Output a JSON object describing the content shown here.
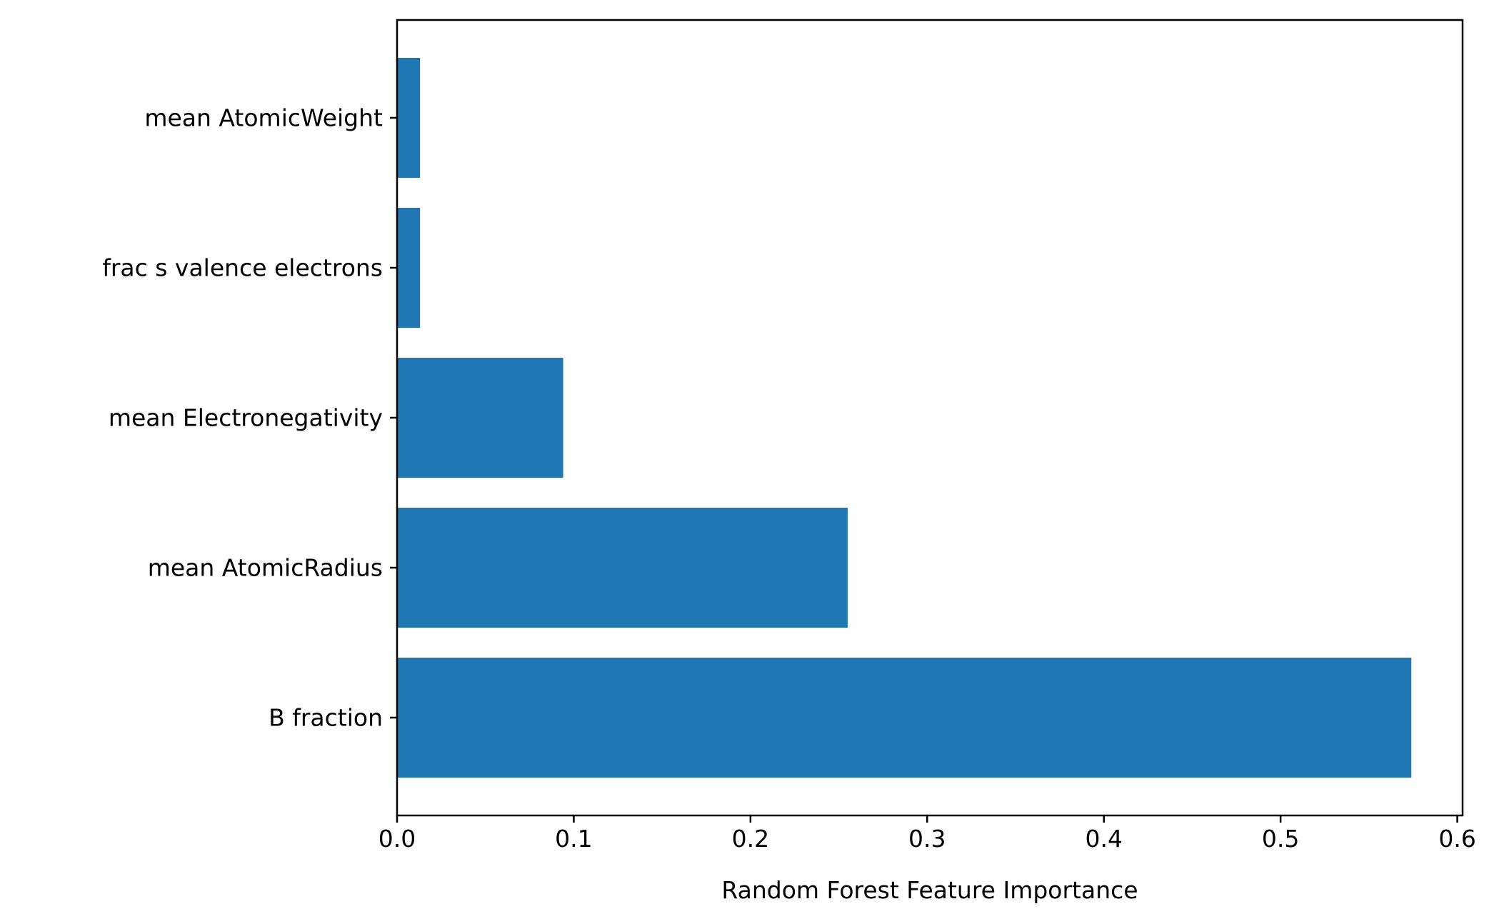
{
  "chart_data": {
    "type": "bar",
    "orientation": "horizontal",
    "categories": [
      "B fraction",
      "mean AtomicRadius",
      "mean Electronegativity",
      "frac s valence electrons",
      "mean AtomicWeight"
    ],
    "values": [
      0.574,
      0.255,
      0.094,
      0.013,
      0.013
    ],
    "xlabel": "Random Forest Feature Importance",
    "ylabel": "",
    "title": "",
    "xlim": [
      0,
      0.603
    ],
    "xticks": [
      0.0,
      0.1,
      0.2,
      0.3,
      0.4,
      0.5,
      0.6
    ],
    "xtick_labels": [
      "0.0",
      "0.1",
      "0.2",
      "0.3",
      "0.4",
      "0.5",
      "0.6"
    ],
    "bar_color": "#1f77b4",
    "grid": false,
    "legend": "none"
  }
}
